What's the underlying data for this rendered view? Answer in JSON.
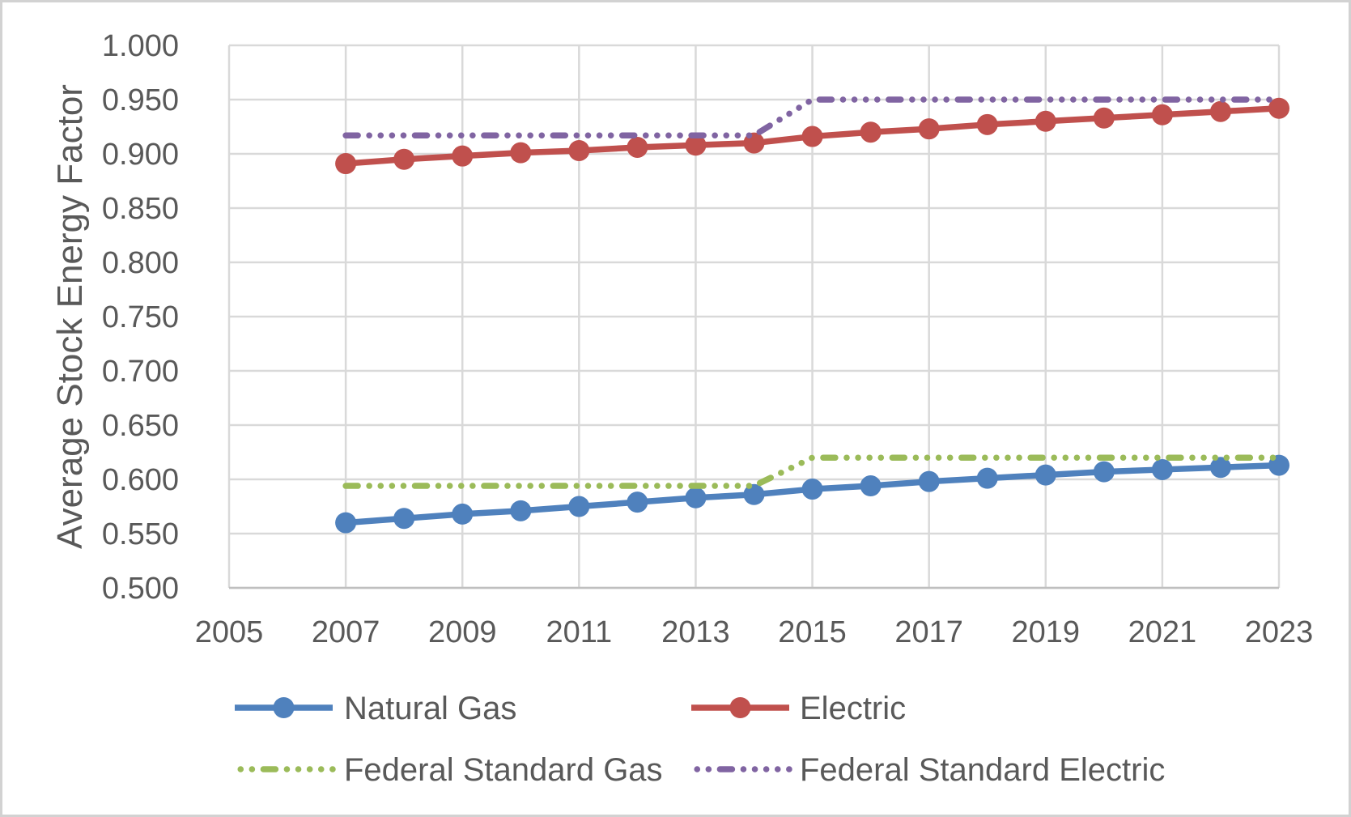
{
  "chart_data": {
    "type": "line",
    "title": "",
    "xlabel": "",
    "ylabel": "Average Stock Energy Factor",
    "xlim": [
      2005,
      2023
    ],
    "ylim": [
      0.5,
      1.0
    ],
    "grid": true,
    "legend_position": "bottom",
    "x_ticks": [
      2005,
      2007,
      2009,
      2011,
      2013,
      2015,
      2017,
      2019,
      2021,
      2023
    ],
    "y_ticks": [
      "1.000",
      "0.950",
      "0.900",
      "0.850",
      "0.800",
      "0.750",
      "0.700",
      "0.650",
      "0.600",
      "0.550",
      "0.500"
    ],
    "x": [
      2007,
      2008,
      2009,
      2010,
      2011,
      2012,
      2013,
      2014,
      2015,
      2016,
      2017,
      2018,
      2019,
      2020,
      2021,
      2022,
      2023
    ],
    "series": [
      {
        "name": "Natural Gas",
        "color": "#4F81BD",
        "style": "solid",
        "marker": "circle",
        "values": [
          0.56,
          0.564,
          0.568,
          0.571,
          0.575,
          0.579,
          0.583,
          0.586,
          0.591,
          0.594,
          0.598,
          0.601,
          0.604,
          0.607,
          0.609,
          0.611,
          0.613
        ]
      },
      {
        "name": "Electric",
        "color": "#C0504D",
        "style": "solid",
        "marker": "circle",
        "values": [
          0.891,
          0.895,
          0.898,
          0.901,
          0.903,
          0.906,
          0.908,
          0.91,
          0.916,
          0.92,
          0.923,
          0.927,
          0.93,
          0.933,
          0.936,
          0.939,
          0.942
        ]
      },
      {
        "name": "Federal Standard Gas",
        "color": "#9BBB59",
        "style": "dotted",
        "marker": "none",
        "values": [
          0.594,
          0.594,
          0.594,
          0.594,
          0.594,
          0.594,
          0.594,
          0.594,
          0.62,
          0.62,
          0.62,
          0.62,
          0.62,
          0.62,
          0.62,
          0.62,
          0.62
        ]
      },
      {
        "name": "Federal Standard Electric",
        "color": "#8064A2",
        "style": "dotted",
        "marker": "none",
        "values": [
          0.917,
          0.917,
          0.917,
          0.917,
          0.917,
          0.917,
          0.917,
          0.917,
          0.95,
          0.95,
          0.95,
          0.95,
          0.95,
          0.95,
          0.95,
          0.95,
          0.95
        ]
      }
    ],
    "colors": {
      "text": "#595959",
      "gridline": "#D9D9D9",
      "axis_line": "#BFBFBF"
    }
  }
}
